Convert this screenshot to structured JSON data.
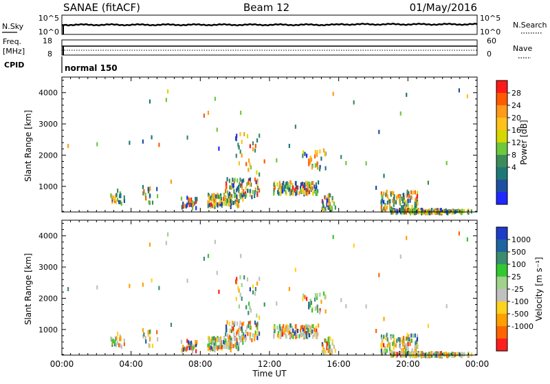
{
  "header": {
    "station": "SANAE (fitACF)",
    "beam": "Beam 12",
    "date": "01/May/2016"
  },
  "top_panels": {
    "nsky_label": "N.Sky",
    "nsearch_label": "N.Search",
    "exp_top": "10^5",
    "exp_bottom": "10^0",
    "freq_label": "Freq.",
    "freq_unit": "[MHz]",
    "freq_ticks": [
      "18",
      "8"
    ],
    "nave_label": "Nave",
    "nave_ticks": [
      "60",
      "0"
    ],
    "cpid_label": "CPID",
    "cpid_value": "normal 150"
  },
  "colorbars": {
    "power": {
      "label": "Power [dB]",
      "ticks": [
        "28",
        "24",
        "20",
        "16",
        "12",
        "8",
        "4"
      ],
      "colors": [
        "#ff1a1a",
        "#ff5a00",
        "#ff9a1a",
        "#ffc21a",
        "#d7d700",
        "#6ec83c",
        "#3c8c5a",
        "#1e7878",
        "#1e50a0",
        "#1e28ff"
      ]
    },
    "velocity": {
      "label": "Velocity [m s⁻¹]",
      "ticks": [
        "1000",
        "500",
        "100",
        "25",
        "-25",
        "-100",
        "-500",
        "-1000"
      ],
      "colors": [
        "#1e3cc8",
        "#1e64a0",
        "#3c8c6e",
        "#32c832",
        "#a0d28c",
        "#c0c0c0",
        "#ffd21e",
        "#ffa000",
        "#ff6400",
        "#ff1e1e"
      ]
    }
  },
  "chart_data": [
    {
      "type": "heatmap",
      "name": "power",
      "ylabel": "Slant Range [km]",
      "xlabel": "",
      "x_ticks": [
        "00:00",
        "04:00",
        "08:00",
        "12:00",
        "16:00",
        "20:00",
        "00:00"
      ],
      "y_ticks": [
        "1000",
        "2000",
        "3000",
        "4000"
      ],
      "xlim": [
        0,
        24
      ],
      "ylim": [
        180,
        4500
      ],
      "grid": false
    },
    {
      "type": "heatmap",
      "name": "velocity",
      "ylabel": "Slant Range [km]",
      "xlabel": "Time UT",
      "x_ticks": [
        "00:00",
        "04:00",
        "08:00",
        "12:00",
        "16:00",
        "20:00",
        "00:00"
      ],
      "y_ticks": [
        "1000",
        "2000",
        "3000",
        "4000"
      ],
      "xlim": [
        0,
        24
      ],
      "ylim": [
        180,
        4500
      ],
      "grid": false
    }
  ]
}
